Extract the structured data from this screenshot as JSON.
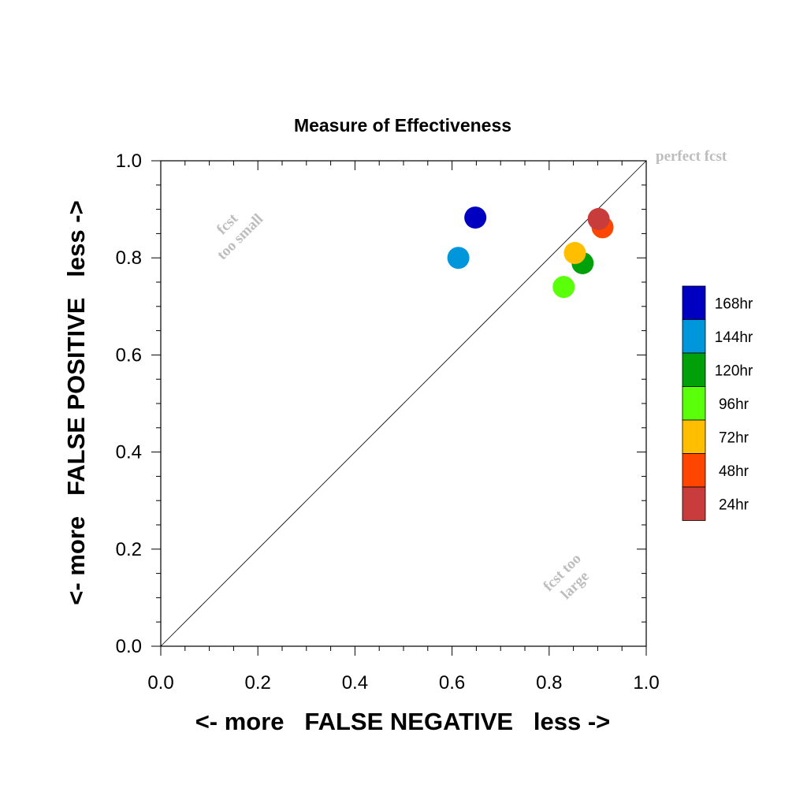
{
  "chart_data": {
    "type": "scatter",
    "title": "Measure of Effectiveness",
    "xlabel": "<- more   FALSE NEGATIVE   less ->",
    "ylabel": "<- more   FALSE POSITIVE   less ->",
    "xlim": [
      0,
      1
    ],
    "ylim": [
      0,
      1
    ],
    "xticks": [
      "0.0",
      "0.2",
      "0.4",
      "0.6",
      "0.8",
      "1.0"
    ],
    "yticks": [
      "0.0",
      "0.2",
      "0.4",
      "0.6",
      "0.8",
      "1.0"
    ],
    "grid": false,
    "diagonal": true,
    "legend_position": "right",
    "series": [
      {
        "name": "168hr",
        "color": "#0000c0",
        "x": 0.648,
        "y": 0.883
      },
      {
        "name": "144hr",
        "color": "#0096dc",
        "x": 0.613,
        "y": 0.8
      },
      {
        "name": "120hr",
        "color": "#00a00a",
        "x": 0.869,
        "y": 0.789
      },
      {
        "name": "96hr",
        "color": "#5aff0a",
        "x": 0.83,
        "y": 0.74
      },
      {
        "name": "72hr",
        "color": "#ffbe00",
        "x": 0.853,
        "y": 0.81
      },
      {
        "name": "48hr",
        "color": "#ff4600",
        "x": 0.91,
        "y": 0.863
      },
      {
        "name": "24hr",
        "color": "#c83c3c",
        "x": 0.902,
        "y": 0.88
      }
    ],
    "annotations": {
      "perfect": "perfect fcst",
      "small_line1": "fcst",
      "small_line2": "too small",
      "large_line1": "fcst too",
      "large_line2": "large"
    }
  }
}
